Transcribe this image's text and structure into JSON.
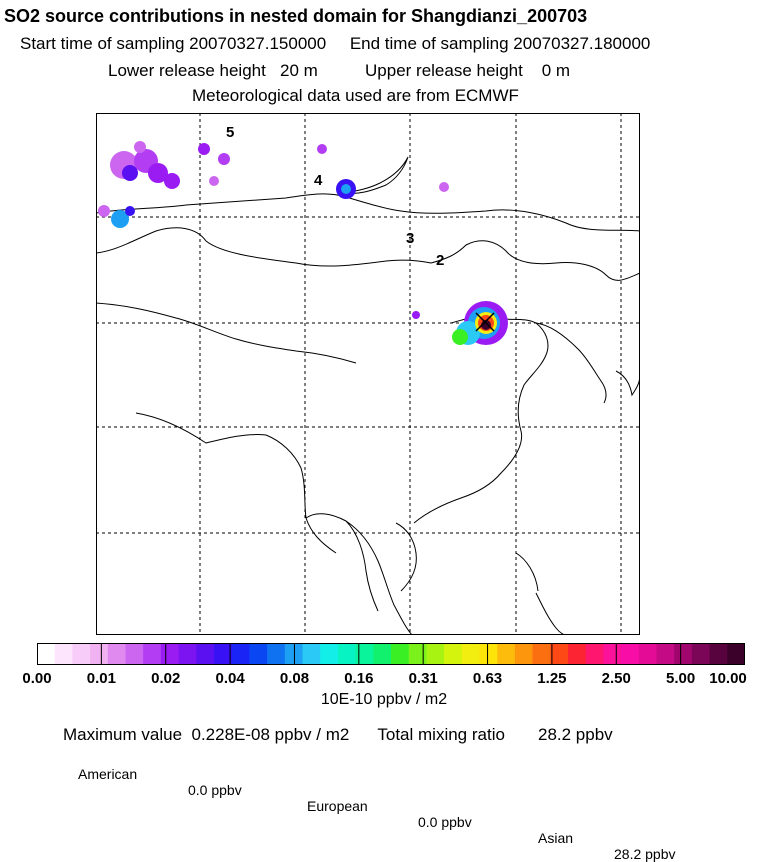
{
  "header": {
    "title": "SO2 source contributions in nested domain for Shangdianzi_200703",
    "line1": "Start time of sampling 20070327.150000     End time of sampling 20070327.180000",
    "line2": "Lower release height   20 m          Upper release height    0 m",
    "line3": "Meteorological data used are from ECMWF"
  },
  "map": {
    "labels": [
      "5",
      "4",
      "3",
      "2"
    ],
    "station_marker": "x-marker"
  },
  "colorbar": {
    "tick_labels": [
      "0.00",
      "0.01",
      "0.02",
      "0.04",
      "0.08",
      "0.16",
      "0.31",
      "0.63",
      "1.25",
      "2.50",
      "5.00",
      "10.00"
    ],
    "colors": [
      "#ffffff",
      "#fde6fd",
      "#f8ccf8",
      "#f1b2f2",
      "#e089ef",
      "#cc66f0",
      "#b23df2",
      "#9b1bf3",
      "#7b14f0",
      "#5a10f0",
      "#3811f5",
      "#1a24f5",
      "#0b46f3",
      "#0f73f1",
      "#1d9ff3",
      "#2bc9f6",
      "#14eee9",
      "#08f3c3",
      "#09f49b",
      "#12f16e",
      "#3af024",
      "#7af11a",
      "#a9f313",
      "#d4f40d",
      "#f2ee10",
      "#fde409",
      "#fdbc0c",
      "#fd960c",
      "#fc6f10",
      "#fd4916",
      "#fc2433",
      "#fe166f",
      "#fc119a",
      "#f80ea6",
      "#e40c96",
      "#c40a84",
      "#a1066e",
      "#7b0556",
      "#58033e",
      "#3c012a"
    ],
    "units": "10E-10 ppbv / m2"
  },
  "summary": {
    "max_label": "Maximum value",
    "max_value": "0.228E-08 ppbv / m2",
    "total_label": "Total mixing ratio",
    "total_value": "28.2 ppbv",
    "american_label": "American",
    "american_value": "0.0 ppbv",
    "european_label": "European",
    "european_value": "0.0 ppbv",
    "asian_label": "Asian",
    "asian_value": "28.2 ppbv"
  }
}
